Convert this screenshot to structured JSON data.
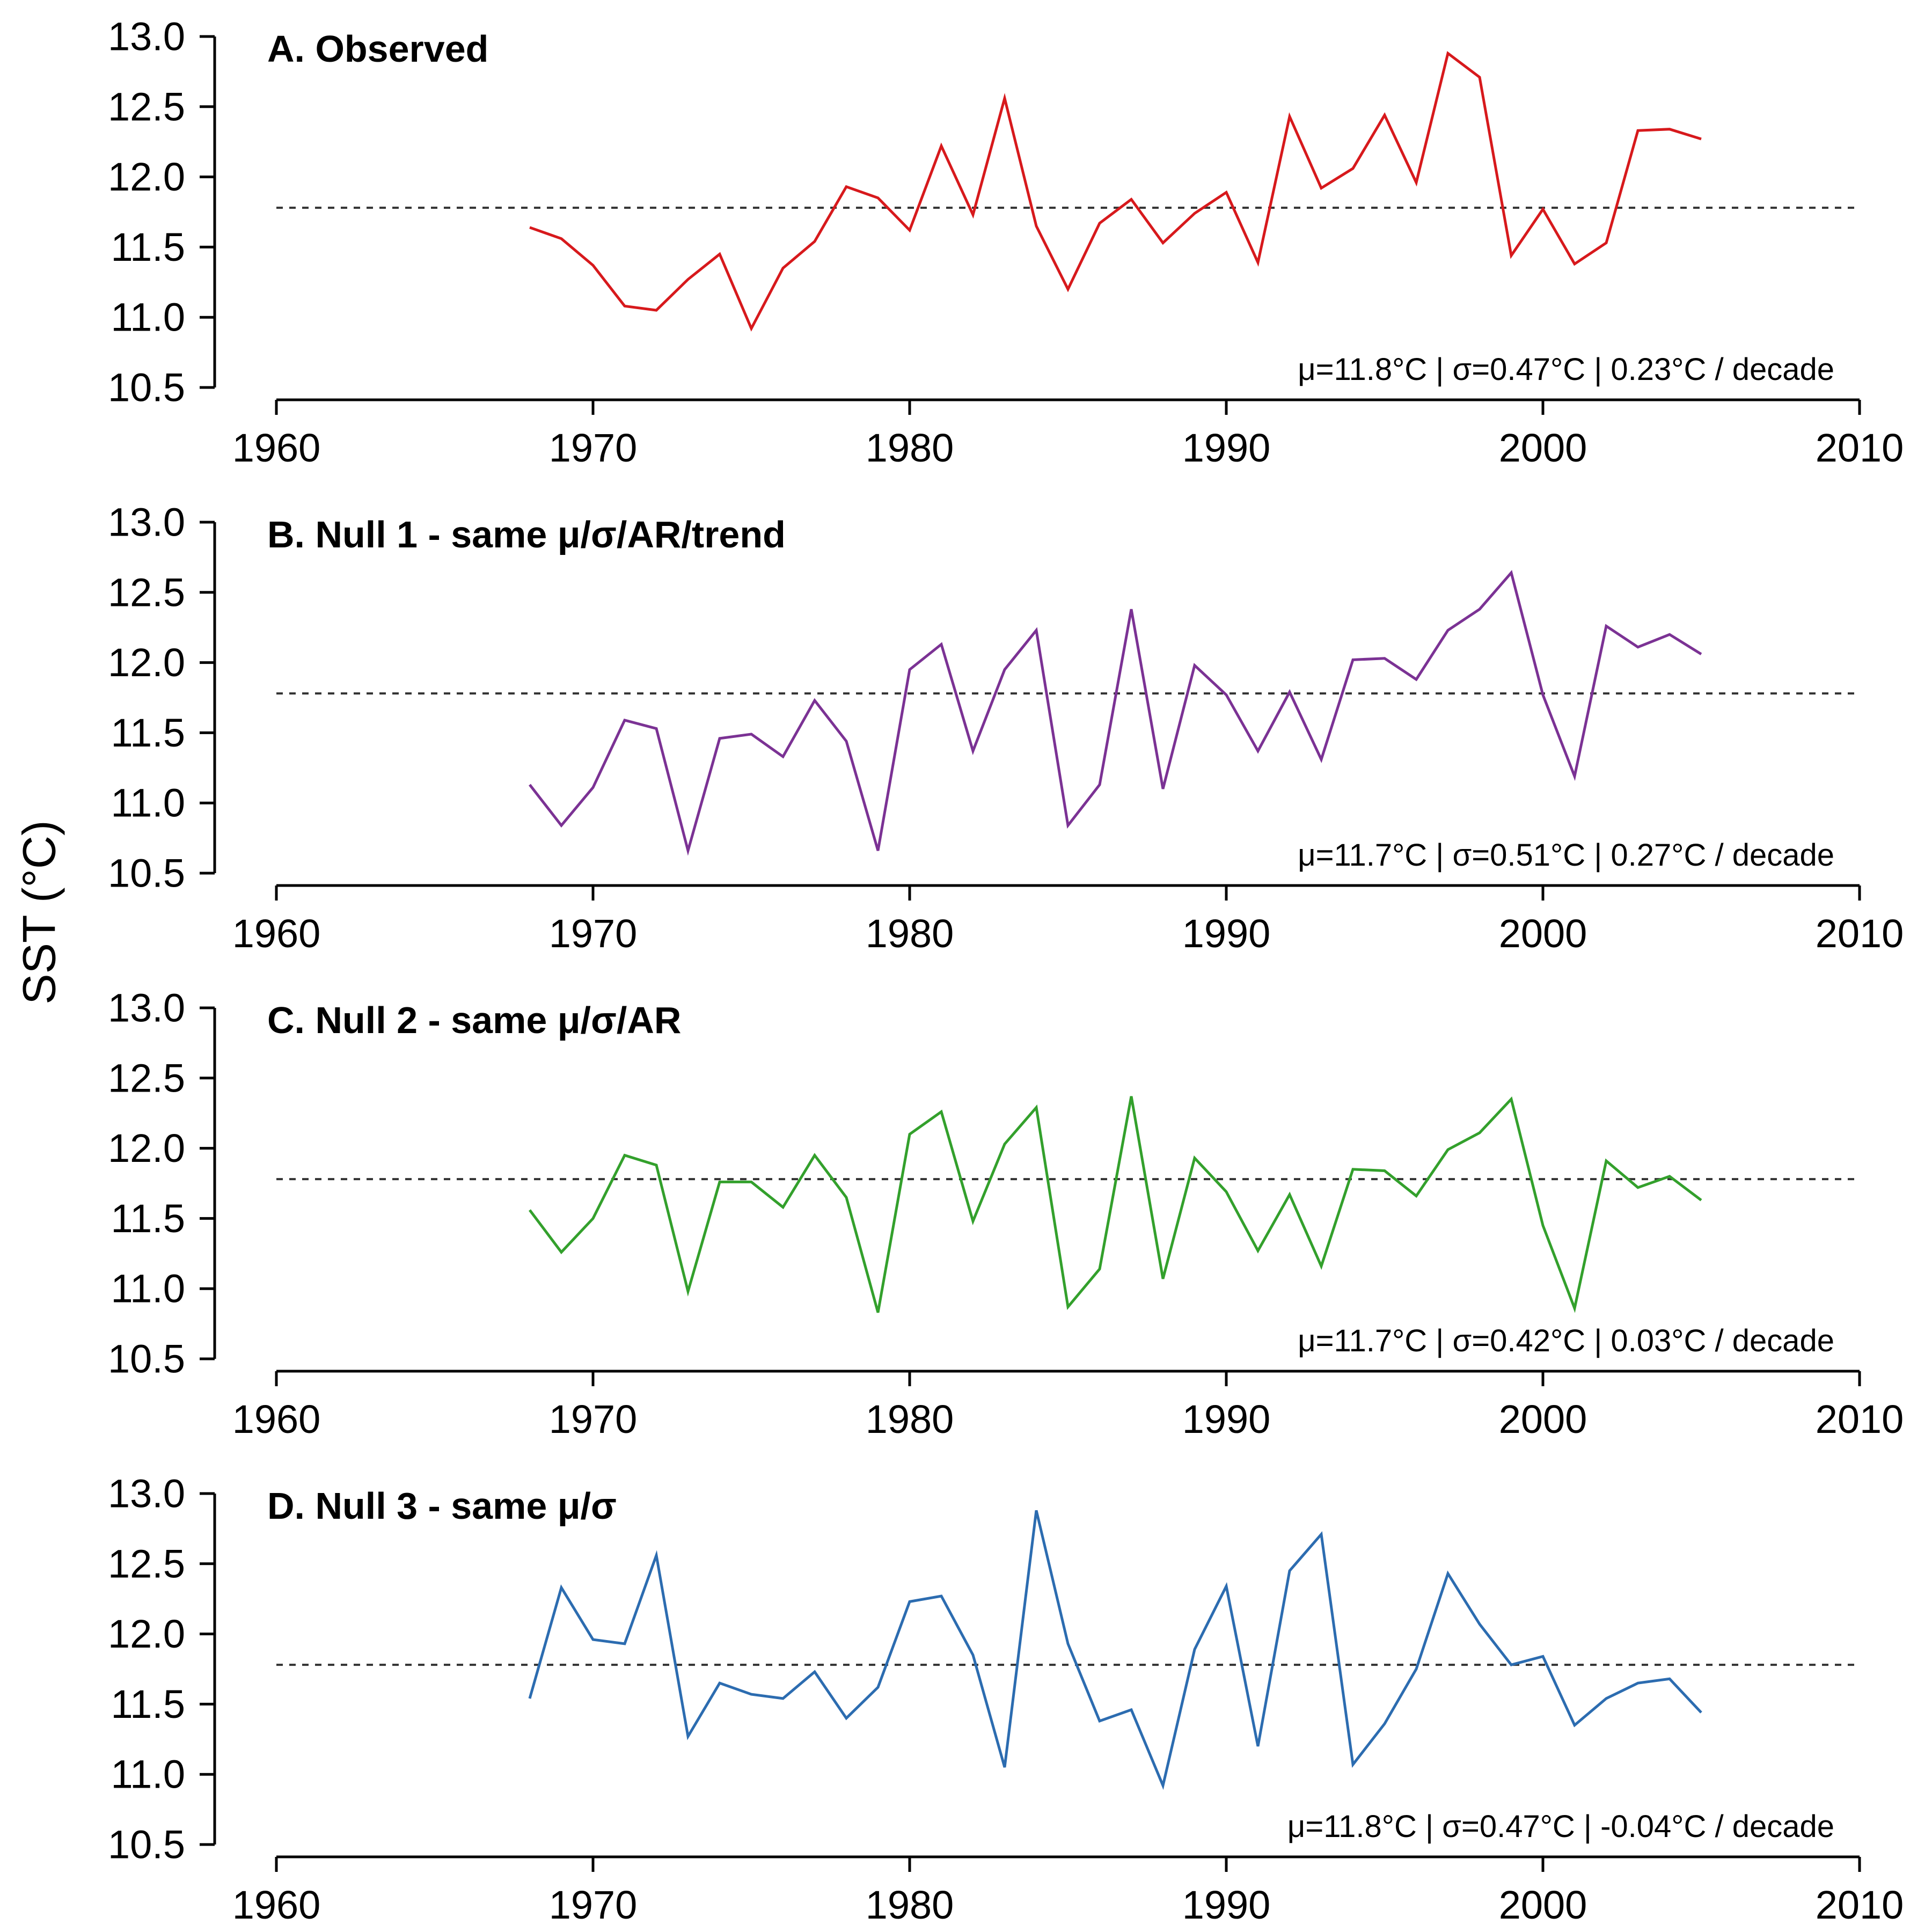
{
  "figure": {
    "ylabel": "SST (°C)"
  },
  "chart_data": [
    {
      "type": "line",
      "title": "A. Observed",
      "stats": "μ=11.8°C | σ=0.47°C | 0.23°C / decade",
      "color": "#d7191c",
      "reference_line": 11.78,
      "xlim": [
        1960,
        2010
      ],
      "ylim": [
        10.5,
        13.0
      ],
      "xticks": [
        1960,
        1970,
        1980,
        1990,
        2000,
        2010
      ],
      "yticks": [
        "10.5",
        "11.0",
        "11.5",
        "12.0",
        "12.5",
        "13.0"
      ],
      "x": [
        1968,
        1969,
        1970,
        1971,
        1972,
        1973,
        1974,
        1975,
        1976,
        1977,
        1978,
        1979,
        1980,
        1981,
        1982,
        1983,
        1984,
        1985,
        1986,
        1987,
        1988,
        1989,
        1990,
        1991,
        1992,
        1993,
        1994,
        1995,
        1996,
        1997,
        1998,
        1999,
        2000,
        2001,
        2002,
        2003,
        2004,
        2005
      ],
      "values": [
        11.64,
        11.56,
        11.37,
        11.08,
        11.05,
        11.27,
        11.45,
        10.92,
        11.35,
        11.54,
        11.93,
        11.85,
        11.62,
        12.22,
        11.73,
        12.56,
        11.65,
        11.2,
        11.67,
        11.84,
        11.53,
        11.74,
        11.89,
        11.39,
        12.43,
        11.92,
        12.06,
        12.44,
        11.96,
        12.88,
        12.71,
        11.44,
        11.77,
        11.38,
        11.53,
        12.33,
        12.34,
        12.27
      ]
    },
    {
      "type": "line",
      "title": "B. Null 1 - same μ/σ/AR/trend",
      "stats": "μ=11.7°C | σ=0.51°C | 0.27°C / decade",
      "color": "#7b3294",
      "reference_line": 11.78,
      "xlim": [
        1960,
        2010
      ],
      "ylim": [
        10.5,
        13.0
      ],
      "xticks": [
        1960,
        1970,
        1980,
        1990,
        2000,
        2010
      ],
      "yticks": [
        "10.5",
        "11.0",
        "11.5",
        "12.0",
        "12.5",
        "13.0"
      ],
      "x": [
        1968,
        1969,
        1970,
        1971,
        1972,
        1973,
        1974,
        1975,
        1976,
        1977,
        1978,
        1979,
        1980,
        1981,
        1982,
        1983,
        1984,
        1985,
        1986,
        1987,
        1988,
        1989,
        1990,
        1991,
        1992,
        1993,
        1994,
        1995,
        1996,
        1997,
        1998,
        1999,
        2000,
        2001,
        2002,
        2003,
        2004,
        2005
      ],
      "values": [
        11.13,
        10.84,
        11.11,
        11.59,
        11.53,
        10.66,
        11.46,
        11.49,
        11.33,
        11.73,
        11.44,
        10.66,
        11.95,
        12.13,
        11.37,
        11.95,
        12.23,
        10.84,
        11.13,
        12.38,
        11.1,
        11.98,
        11.77,
        11.37,
        11.79,
        11.31,
        12.02,
        12.03,
        11.88,
        12.23,
        12.38,
        12.64,
        11.77,
        11.19,
        12.26,
        12.11,
        12.2,
        12.06
      ]
    },
    {
      "type": "line",
      "title": "C. Null 2 - same μ/σ/AR",
      "stats": "μ=11.7°C | σ=0.42°C | 0.03°C / decade",
      "color": "#33a02c",
      "reference_line": 11.78,
      "xlim": [
        1960,
        2010
      ],
      "ylim": [
        10.5,
        13.0
      ],
      "xticks": [
        1960,
        1970,
        1980,
        1990,
        2000,
        2010
      ],
      "yticks": [
        "10.5",
        "11.0",
        "11.5",
        "12.0",
        "12.5",
        "13.0"
      ],
      "x": [
        1968,
        1969,
        1970,
        1971,
        1972,
        1973,
        1974,
        1975,
        1976,
        1977,
        1978,
        1979,
        1980,
        1981,
        1982,
        1983,
        1984,
        1985,
        1986,
        1987,
        1988,
        1989,
        1990,
        1991,
        1992,
        1993,
        1994,
        1995,
        1996,
        1997,
        1998,
        1999,
        2000,
        2001,
        2002,
        2003,
        2004,
        2005
      ],
      "values": [
        11.56,
        11.26,
        11.5,
        11.95,
        11.88,
        10.98,
        11.76,
        11.76,
        11.58,
        11.95,
        11.65,
        10.83,
        12.1,
        12.26,
        11.48,
        12.03,
        12.29,
        10.87,
        11.14,
        12.37,
        11.07,
        11.93,
        11.69,
        11.27,
        11.67,
        11.16,
        11.85,
        11.84,
        11.66,
        11.99,
        12.11,
        12.35,
        11.45,
        10.86,
        11.91,
        11.72,
        11.8,
        11.63
      ]
    },
    {
      "type": "line",
      "title": "D. Null 3 - same μ/σ",
      "stats": "μ=11.8°C | σ=0.47°C | -0.04°C / decade",
      "color": "#2c6cb0",
      "reference_line": 11.78,
      "xlim": [
        1960,
        2010
      ],
      "ylim": [
        10.5,
        13.0
      ],
      "xticks": [
        1960,
        1970,
        1980,
        1990,
        2000,
        2010
      ],
      "yticks": [
        "10.5",
        "11.0",
        "11.5",
        "12.0",
        "12.5",
        "13.0"
      ],
      "x": [
        1968,
        1969,
        1970,
        1971,
        1972,
        1973,
        1974,
        1975,
        1976,
        1977,
        1978,
        1979,
        1980,
        1981,
        1982,
        1983,
        1984,
        1985,
        1986,
        1987,
        1988,
        1989,
        1990,
        1991,
        1992,
        1993,
        1994,
        1995,
        1996,
        1997,
        1998,
        1999,
        2000,
        2001,
        2002,
        2003,
        2004,
        2005
      ],
      "values": [
        11.54,
        12.33,
        11.96,
        11.93,
        12.56,
        11.27,
        11.65,
        11.57,
        11.54,
        11.73,
        11.4,
        11.62,
        12.23,
        12.27,
        11.85,
        11.05,
        12.88,
        11.93,
        11.38,
        11.46,
        10.92,
        11.89,
        12.34,
        11.2,
        12.45,
        12.71,
        11.07,
        11.36,
        11.75,
        12.43,
        12.07,
        11.78,
        11.84,
        11.35,
        11.54,
        11.65,
        11.68,
        11.44
      ]
    }
  ]
}
